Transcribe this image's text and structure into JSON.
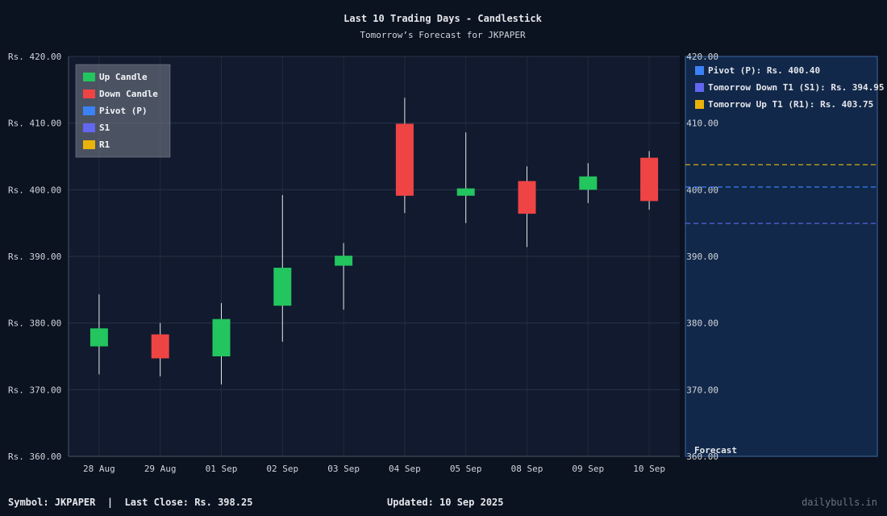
{
  "chart_data": {
    "type": "candlestick",
    "title": "Last 10 Trading Days - Candlestick",
    "subtitle": "Tomorrow’s Forecast for JKPAPER",
    "y_tick_prefix": "Rs. ",
    "ylim": [
      360,
      420
    ],
    "yticks": [
      360,
      370,
      380,
      390,
      400,
      410,
      420
    ],
    "grid": true,
    "legend_placement": "top-left",
    "legend": [
      {
        "label": "Up Candle",
        "color": "#22c55e"
      },
      {
        "label": "Down Candle",
        "color": "#ef4444"
      },
      {
        "label": "Pivot (P)",
        "color": "#3b82f6"
      },
      {
        "label": "S1",
        "color": "#6366f1"
      },
      {
        "label": "R1",
        "color": "#eab308"
      }
    ],
    "categories": [
      "28 Aug",
      "29 Aug",
      "01 Sep",
      "02 Sep",
      "03 Sep",
      "04 Sep",
      "05 Sep",
      "08 Sep",
      "09 Sep",
      "10 Sep"
    ],
    "candles": [
      {
        "open": 376.5,
        "close": 379.2,
        "high": 384.3,
        "low": 372.3
      },
      {
        "open": 378.3,
        "close": 374.7,
        "high": 380.0,
        "low": 372.0
      },
      {
        "open": 375.0,
        "close": 380.6,
        "high": 383.0,
        "low": 370.8
      },
      {
        "open": 382.6,
        "close": 388.3,
        "high": 399.2,
        "low": 377.2
      },
      {
        "open": 388.6,
        "close": 390.1,
        "high": 392.0,
        "low": 382.0
      },
      {
        "open": 409.9,
        "close": 399.1,
        "high": 413.8,
        "low": 396.5
      },
      {
        "open": 399.1,
        "close": 400.2,
        "high": 408.6,
        "low": 395.0
      },
      {
        "open": 401.3,
        "close": 396.4,
        "high": 403.5,
        "low": 391.4
      },
      {
        "open": 400.0,
        "close": 402.0,
        "high": 404.0,
        "low": 398.0
      },
      {
        "open": 404.8,
        "close": 398.3,
        "high": 405.8,
        "low": 397.0
      }
    ],
    "up_color": "#22c55e",
    "down_color": "#ef4444",
    "forecast": {
      "label": "Forecast",
      "levels": [
        {
          "label": "Pivot (P): Rs. 400.40",
          "value": 400.4,
          "color": "#3b82f6"
        },
        {
          "label": "Tomorrow Down T1 (S1): Rs. 394.95",
          "value": 394.95,
          "color": "#6366f1"
        },
        {
          "label": "Tomorrow Up T1 (R1): Rs. 403.75",
          "value": 403.75,
          "color": "#eab308"
        }
      ]
    }
  },
  "footer": {
    "symbol_text": "Symbol: JKPAPER  |  Last Close: Rs. 398.25",
    "updated_text": "Updated: 10 Sep 2025",
    "brand": "dailybulls.in"
  }
}
